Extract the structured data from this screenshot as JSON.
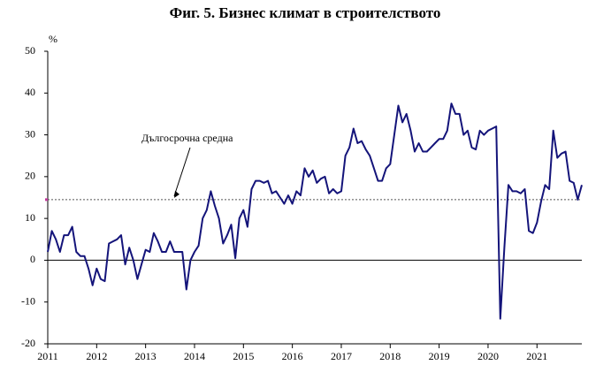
{
  "chart_data": {
    "type": "line",
    "title": "Фиг. 5. Бизнес климат в строителството",
    "y_unit": "%",
    "categories": [
      "2011",
      null,
      null,
      null,
      null,
      null,
      null,
      null,
      null,
      null,
      null,
      null,
      "2012",
      null,
      null,
      null,
      null,
      null,
      null,
      null,
      null,
      null,
      null,
      null,
      "2013",
      null,
      null,
      null,
      null,
      null,
      null,
      null,
      null,
      null,
      null,
      null,
      "2014",
      null,
      null,
      null,
      null,
      null,
      null,
      null,
      null,
      null,
      null,
      null,
      "2015",
      null,
      null,
      null,
      null,
      null,
      null,
      null,
      null,
      null,
      null,
      null,
      "2016",
      null,
      null,
      null,
      null,
      null,
      null,
      null,
      null,
      null,
      null,
      null,
      "2017",
      null,
      null,
      null,
      null,
      null,
      null,
      null,
      null,
      null,
      null,
      null,
      "2018",
      null,
      null,
      null,
      null,
      null,
      null,
      null,
      null,
      null,
      null,
      null,
      "2019",
      null,
      null,
      null,
      null,
      null,
      null,
      null,
      null,
      null,
      null,
      null,
      "2020",
      null,
      null,
      null,
      null,
      null,
      null,
      null,
      null,
      null,
      null,
      null,
      "2021",
      null,
      null,
      null,
      null,
      null,
      null,
      null,
      null,
      null,
      null,
      null
    ],
    "series": [
      {
        "color": "#14147a",
        "values": [
          2,
          7,
          5,
          2,
          6,
          6,
          8,
          2,
          1,
          1,
          -2,
          -6,
          -2,
          -4.5,
          -5,
          4,
          4.5,
          5,
          6,
          -1,
          3,
          0,
          -4.5,
          -1,
          2.5,
          2,
          6.5,
          4.5,
          2,
          2,
          4.5,
          2,
          2,
          2,
          -7,
          0,
          2,
          3.5,
          10,
          12,
          16.5,
          13,
          10,
          4,
          6,
          8.5,
          0.5,
          10,
          12,
          8,
          17,
          19,
          19,
          18.5,
          19,
          16,
          16.5,
          15,
          13.5,
          15.5,
          13.5,
          16.5,
          15.5,
          22,
          20,
          21.5,
          18.5,
          19.5,
          20,
          16,
          17,
          16,
          16.5,
          25,
          27,
          31.5,
          28,
          28.5,
          26.5,
          25,
          22,
          19,
          19,
          22,
          23,
          30,
          37,
          33,
          35,
          31,
          26,
          28,
          26,
          26,
          27,
          28,
          29,
          29,
          31,
          37.5,
          35,
          35,
          30,
          31,
          27,
          26.5,
          31,
          30,
          31,
          31.5,
          32,
          -14,
          3,
          18,
          16.5,
          16.5,
          16,
          17,
          7,
          6.5,
          9,
          14,
          18,
          17,
          31,
          24.5,
          25.5,
          26,
          19,
          18.5,
          14.5,
          18
        ]
      }
    ],
    "average": 14.5,
    "average_label": "Дългосрочна средна",
    "average_color": "#555555",
    "ylim": [
      -20,
      50
    ],
    "yticks": [
      -20,
      -10,
      0,
      10,
      20,
      30,
      40,
      50
    ]
  }
}
